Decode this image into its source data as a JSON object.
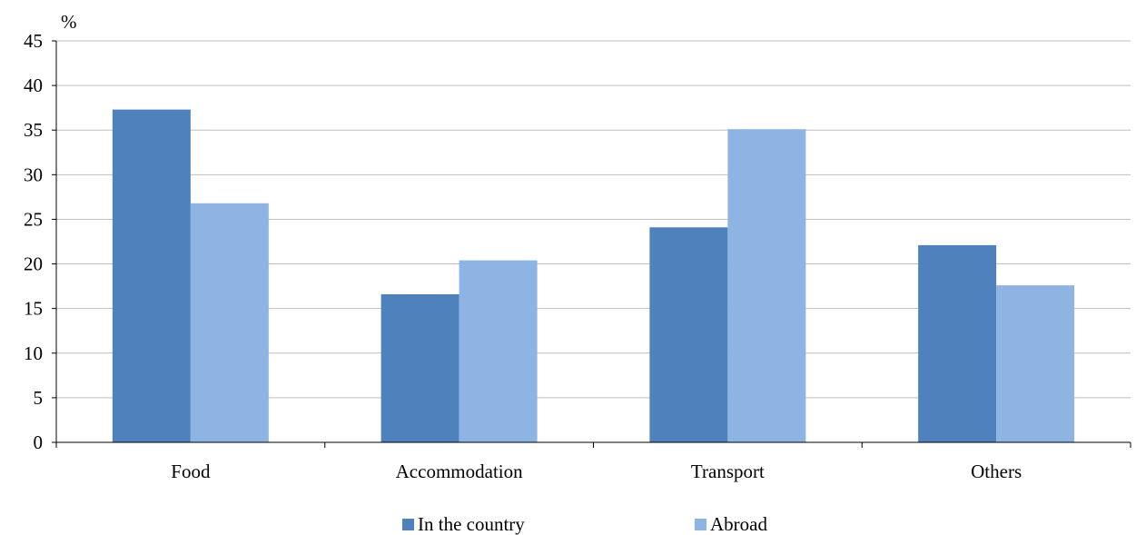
{
  "chart_data": {
    "type": "bar",
    "unit_label": "%",
    "categories": [
      "Food",
      "Accommodation",
      "Transport",
      "Others"
    ],
    "series": [
      {
        "name": "In the country",
        "color": "#4f81bd",
        "values": [
          37.3,
          16.6,
          24.1,
          22.1
        ]
      },
      {
        "name": "Abroad",
        "color": "#8eb4e3",
        "values": [
          26.8,
          20.4,
          35.1,
          17.6
        ]
      }
    ],
    "ylim": [
      0,
      45
    ],
    "yticks": [
      0,
      5,
      10,
      15,
      20,
      25,
      30,
      35,
      40,
      45
    ],
    "grid": true,
    "legend_position": "bottom"
  }
}
